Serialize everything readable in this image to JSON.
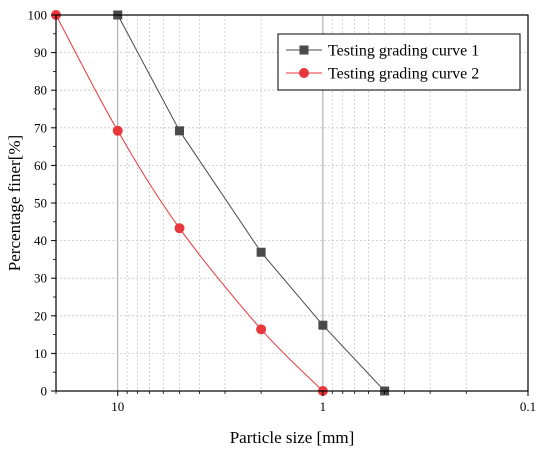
{
  "chart_data": {
    "type": "line",
    "title": "",
    "xlabel": "Particle size [mm]",
    "ylabel": "Percentage finer[%]",
    "x_scale": "log",
    "x_reversed": true,
    "xlim": [
      20,
      0.1
    ],
    "ylim": [
      0,
      100
    ],
    "x_ticks": [
      10,
      1,
      0.1
    ],
    "x_tick_labels": [
      "10",
      "1",
      "0.1"
    ],
    "y_ticks": [
      0,
      10,
      20,
      30,
      40,
      50,
      60,
      70,
      80,
      90,
      100
    ],
    "y_tick_labels": [
      "0",
      "10",
      "20",
      "30",
      "40",
      "50",
      "60",
      "70",
      "80",
      "90",
      "100"
    ],
    "grid": true,
    "legend_position": "top-right",
    "series": [
      {
        "name": "Testing grading curve 1",
        "color": "#4a4a4a",
        "marker": "square",
        "x": [
          10,
          5,
          2,
          1,
          0.5
        ],
        "y": [
          100,
          69.2,
          36.9,
          17.5,
          0
        ]
      },
      {
        "name": "Testing grading curve 2",
        "color": "#e8383d",
        "marker": "circle",
        "x": [
          20,
          10,
          5,
          2,
          1
        ],
        "y": [
          100,
          69.2,
          43.3,
          16.4,
          0
        ]
      }
    ]
  }
}
